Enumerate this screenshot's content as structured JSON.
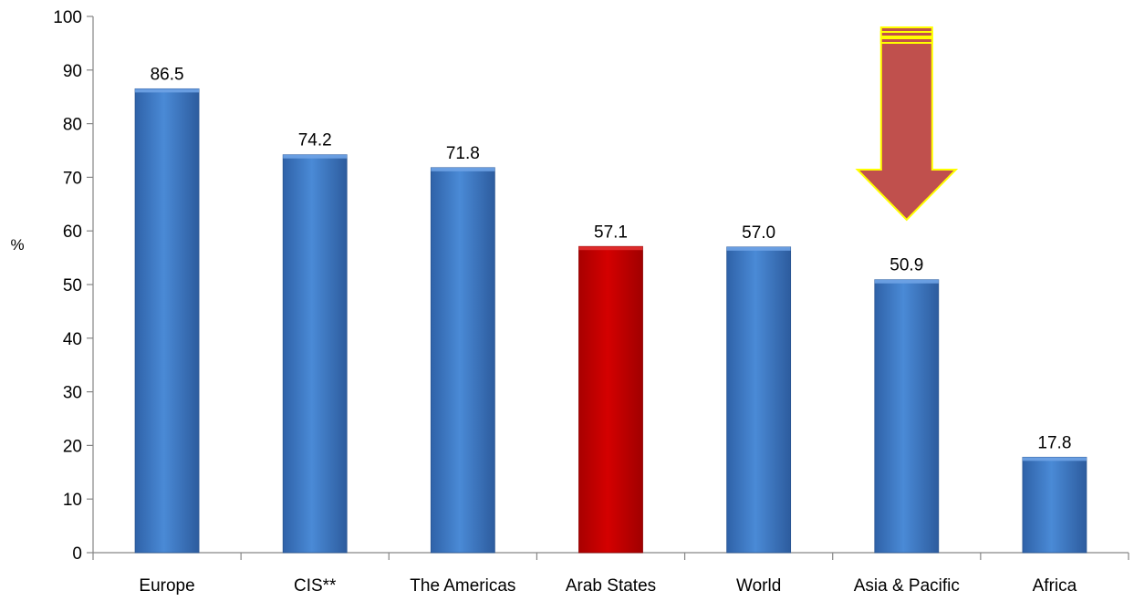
{
  "chart_data": {
    "type": "bar",
    "categories": [
      "Europe",
      "CIS**",
      "The Americas",
      "Arab States",
      "World",
      "Asia & Pacific",
      "Africa"
    ],
    "values": [
      86.5,
      74.2,
      71.8,
      57.1,
      57.0,
      50.9,
      17.8
    ],
    "value_labels": [
      "86.5",
      "74.2",
      "71.8",
      "57.1",
      "57.0",
      "50.9",
      "17.8"
    ],
    "highlight": {
      "category": "Arab States",
      "color": "#c00000"
    },
    "bar_color": "#3c78c8",
    "ylabel": "%",
    "xlabel": "",
    "title": "",
    "ylim": [
      0,
      100
    ],
    "yticks": [
      0,
      10,
      20,
      30,
      40,
      50,
      60,
      70,
      80,
      90,
      100
    ],
    "grid": false,
    "annotation": {
      "type": "down-arrow",
      "category": "Asia & Pacific",
      "fill": "#c0504d",
      "outline": "#ffff00"
    }
  }
}
